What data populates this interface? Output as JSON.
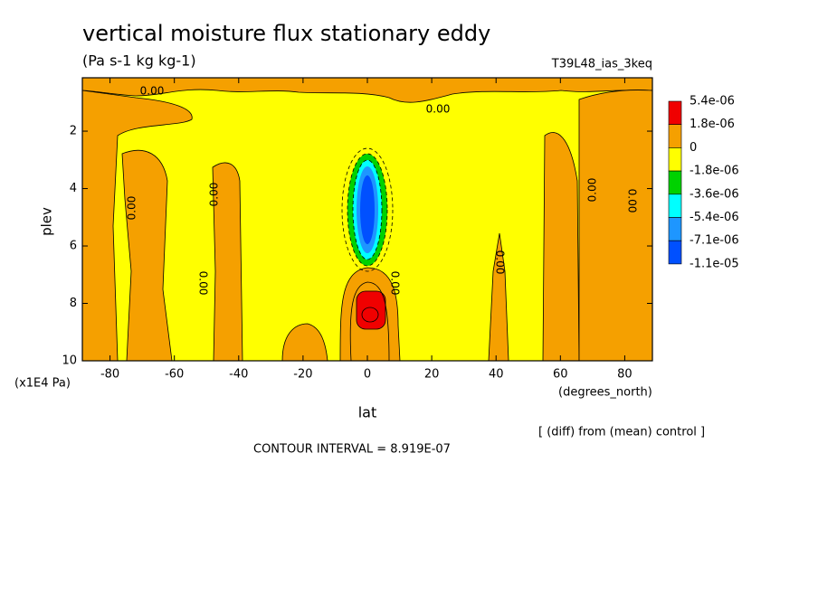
{
  "chart_data": {
    "type": "contour",
    "title": "vertical moisture flux stationary eddy",
    "subtitle": "(Pa s-1 kg kg-1)",
    "run_label": "T39L48_ias_3keq",
    "y_label": "plev",
    "y_units": "(x1E4 Pa)",
    "x_label": "lat",
    "x_units": "(degrees_north)",
    "note": "[ (diff) from (mean) control ]",
    "contour_interval": "CONTOUR INTERVAL = 8.919E-07",
    "contour_labels": [
      "0.00",
      "0.00",
      "0.00",
      "0.00",
      "0.00",
      "0.00",
      "0.00",
      "0.00",
      "0.00"
    ],
    "xlim": [
      -88.6,
      88.6
    ],
    "xticks": [
      -80,
      -60,
      -40,
      -20,
      0,
      20,
      40,
      60,
      80
    ],
    "ylim": [
      10,
      0.14
    ],
    "yticks": [
      2,
      4,
      6,
      8,
      10
    ],
    "levels": [
      {
        "value": 5.4e-06,
        "label": "5.4e-06"
      },
      {
        "value": 1.8e-06,
        "label": "1.8e-06"
      },
      0,
      {
        "value": -1.8e-06,
        "label": "-1.8e-06"
      },
      {
        "value": -3.6e-06,
        "label": "-3.6e-06"
      },
      {
        "value": -5.4e-06,
        "label": "-5.4e-06"
      },
      {
        "value": -7.1e-06,
        "label": "-7.1e-06"
      },
      {
        "value": -1.1e-05,
        "label": "-1.1e-05"
      }
    ],
    "level_colors": [
      "#f00000",
      "#f5a000",
      "#ffff00",
      "#00d200",
      "#00ffff",
      "#1e96ff",
      "#0050ff"
    ]
  }
}
